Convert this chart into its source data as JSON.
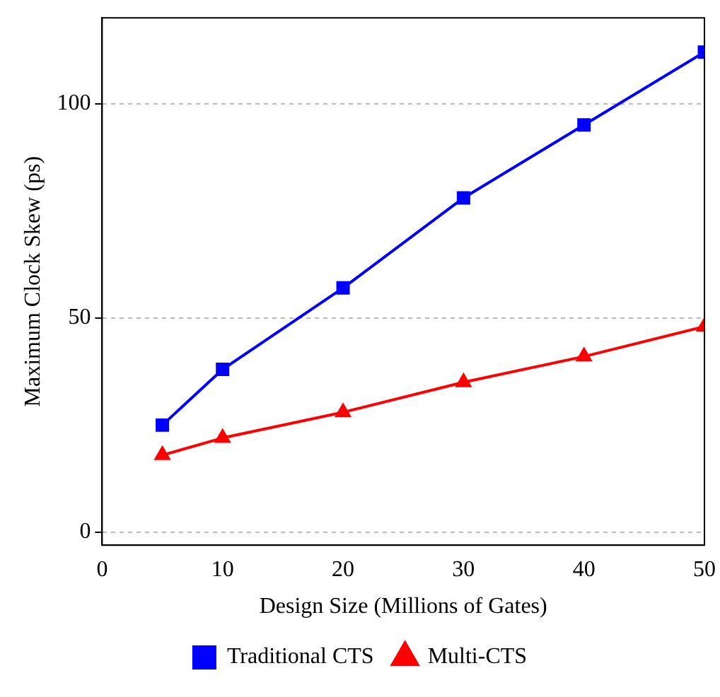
{
  "chart_data": {
    "type": "line",
    "xlabel": "Design Size (Millions of Gates)",
    "ylabel": "Maximum Clock Skew (ps)",
    "x": [
      5,
      10,
      20,
      30,
      40,
      50
    ],
    "series": [
      {
        "name": "Traditional CTS",
        "color": "#0000ff",
        "marker": "square",
        "values": [
          25,
          38,
          57,
          78,
          95,
          112
        ]
      },
      {
        "name": "Multi-CTS",
        "color": "#ff0000",
        "marker": "triangle",
        "values": [
          18,
          22,
          28,
          35,
          41,
          48
        ]
      }
    ],
    "xlim": [
      0,
      50
    ],
    "xticks": [
      0,
      10,
      20,
      30,
      40,
      50
    ],
    "ylim": [
      -3,
      120
    ],
    "yticks": [
      0,
      50,
      100
    ],
    "grid": "y",
    "legend": "bottom"
  }
}
